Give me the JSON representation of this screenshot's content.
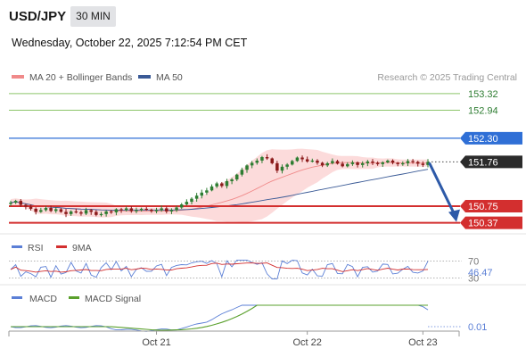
{
  "header": {
    "symbol": "USD/JPY",
    "timeframe": "30 MIN",
    "datetime": "Wednesday, October 22, 2025 7:12:54 PM CET"
  },
  "legend": {
    "ma20": "MA 20 + Bollinger Bands",
    "ma50": "MA 50",
    "credit": "Research © 2025 Trading Central"
  },
  "colors": {
    "up": "#2e7d32",
    "down": "#8b1a1a",
    "resistance": "#d32f2f",
    "support_green": "#8cc56a",
    "pivot_blue": "#2f6fd6",
    "band_fill": "#fbd5d5",
    "ma20": "#f08a8a",
    "ma50": "#3a5a96",
    "arrow": "#2e5aa8",
    "rsi": "#5b7fd6",
    "rsi_ma": "#d32f2f",
    "macd": "#5b7fd6",
    "macd_signal": "#5aa02c"
  },
  "chart_data": [
    {
      "type": "candlestick",
      "ylim": [
        150.2,
        153.5
      ],
      "x_ticks": [
        "Oct 21",
        "Oct 22",
        "Oct 23"
      ],
      "x_tick_index": [
        29,
        59,
        82
      ],
      "n_bars": 84,
      "closes": [
        150.83,
        150.87,
        150.78,
        150.74,
        150.69,
        150.62,
        150.66,
        150.71,
        150.64,
        150.68,
        150.62,
        150.57,
        150.63,
        150.61,
        150.58,
        150.66,
        150.62,
        150.55,
        150.57,
        150.63,
        150.61,
        150.68,
        150.66,
        150.7,
        150.64,
        150.66,
        150.69,
        150.67,
        150.64,
        150.66,
        150.7,
        150.63,
        150.66,
        150.72,
        150.79,
        150.85,
        150.92,
        150.99,
        151.06,
        151.11,
        151.2,
        151.27,
        151.21,
        151.32,
        151.36,
        151.47,
        151.58,
        151.68,
        151.74,
        151.79,
        151.87,
        151.84,
        151.73,
        151.56,
        151.65,
        151.7,
        151.78,
        151.86,
        151.82,
        151.77,
        151.79,
        151.74,
        151.68,
        151.73,
        151.78,
        151.72,
        151.66,
        151.71,
        151.75,
        151.69,
        151.73,
        151.77,
        151.74,
        151.71,
        151.75,
        151.79,
        151.74,
        151.71,
        151.73,
        151.78,
        151.76,
        151.72,
        151.69,
        151.76
      ],
      "ma20_level": 151.72,
      "ma50_level": 151.74,
      "levels": [
        {
          "value": 153.32,
          "label": "153.32",
          "kind": "support_green"
        },
        {
          "value": 152.94,
          "label": "152.94",
          "kind": "support_green"
        },
        {
          "value": 152.3,
          "label": "152.30",
          "kind": "pivot_blue"
        },
        {
          "value": 151.76,
          "label": "151.76",
          "kind": "current"
        },
        {
          "value": 150.75,
          "label": "150.75",
          "kind": "resistance"
        },
        {
          "value": 150.37,
          "label": "150.37",
          "kind": "resistance"
        }
      ],
      "forecast_arrow": {
        "from": 151.76,
        "to": 150.37
      }
    },
    {
      "type": "line",
      "name": "RSI",
      "legend": [
        "RSI",
        "9MA"
      ],
      "levels": [
        {
          "value": 70,
          "label": "70"
        },
        {
          "value": 30,
          "label": "30"
        }
      ],
      "current_label": "46.47",
      "ylim": [
        25,
        75
      ]
    },
    {
      "type": "line",
      "name": "MACD",
      "legend": [
        "MACD",
        "MACD Signal"
      ],
      "current_label": "0.01"
    }
  ]
}
